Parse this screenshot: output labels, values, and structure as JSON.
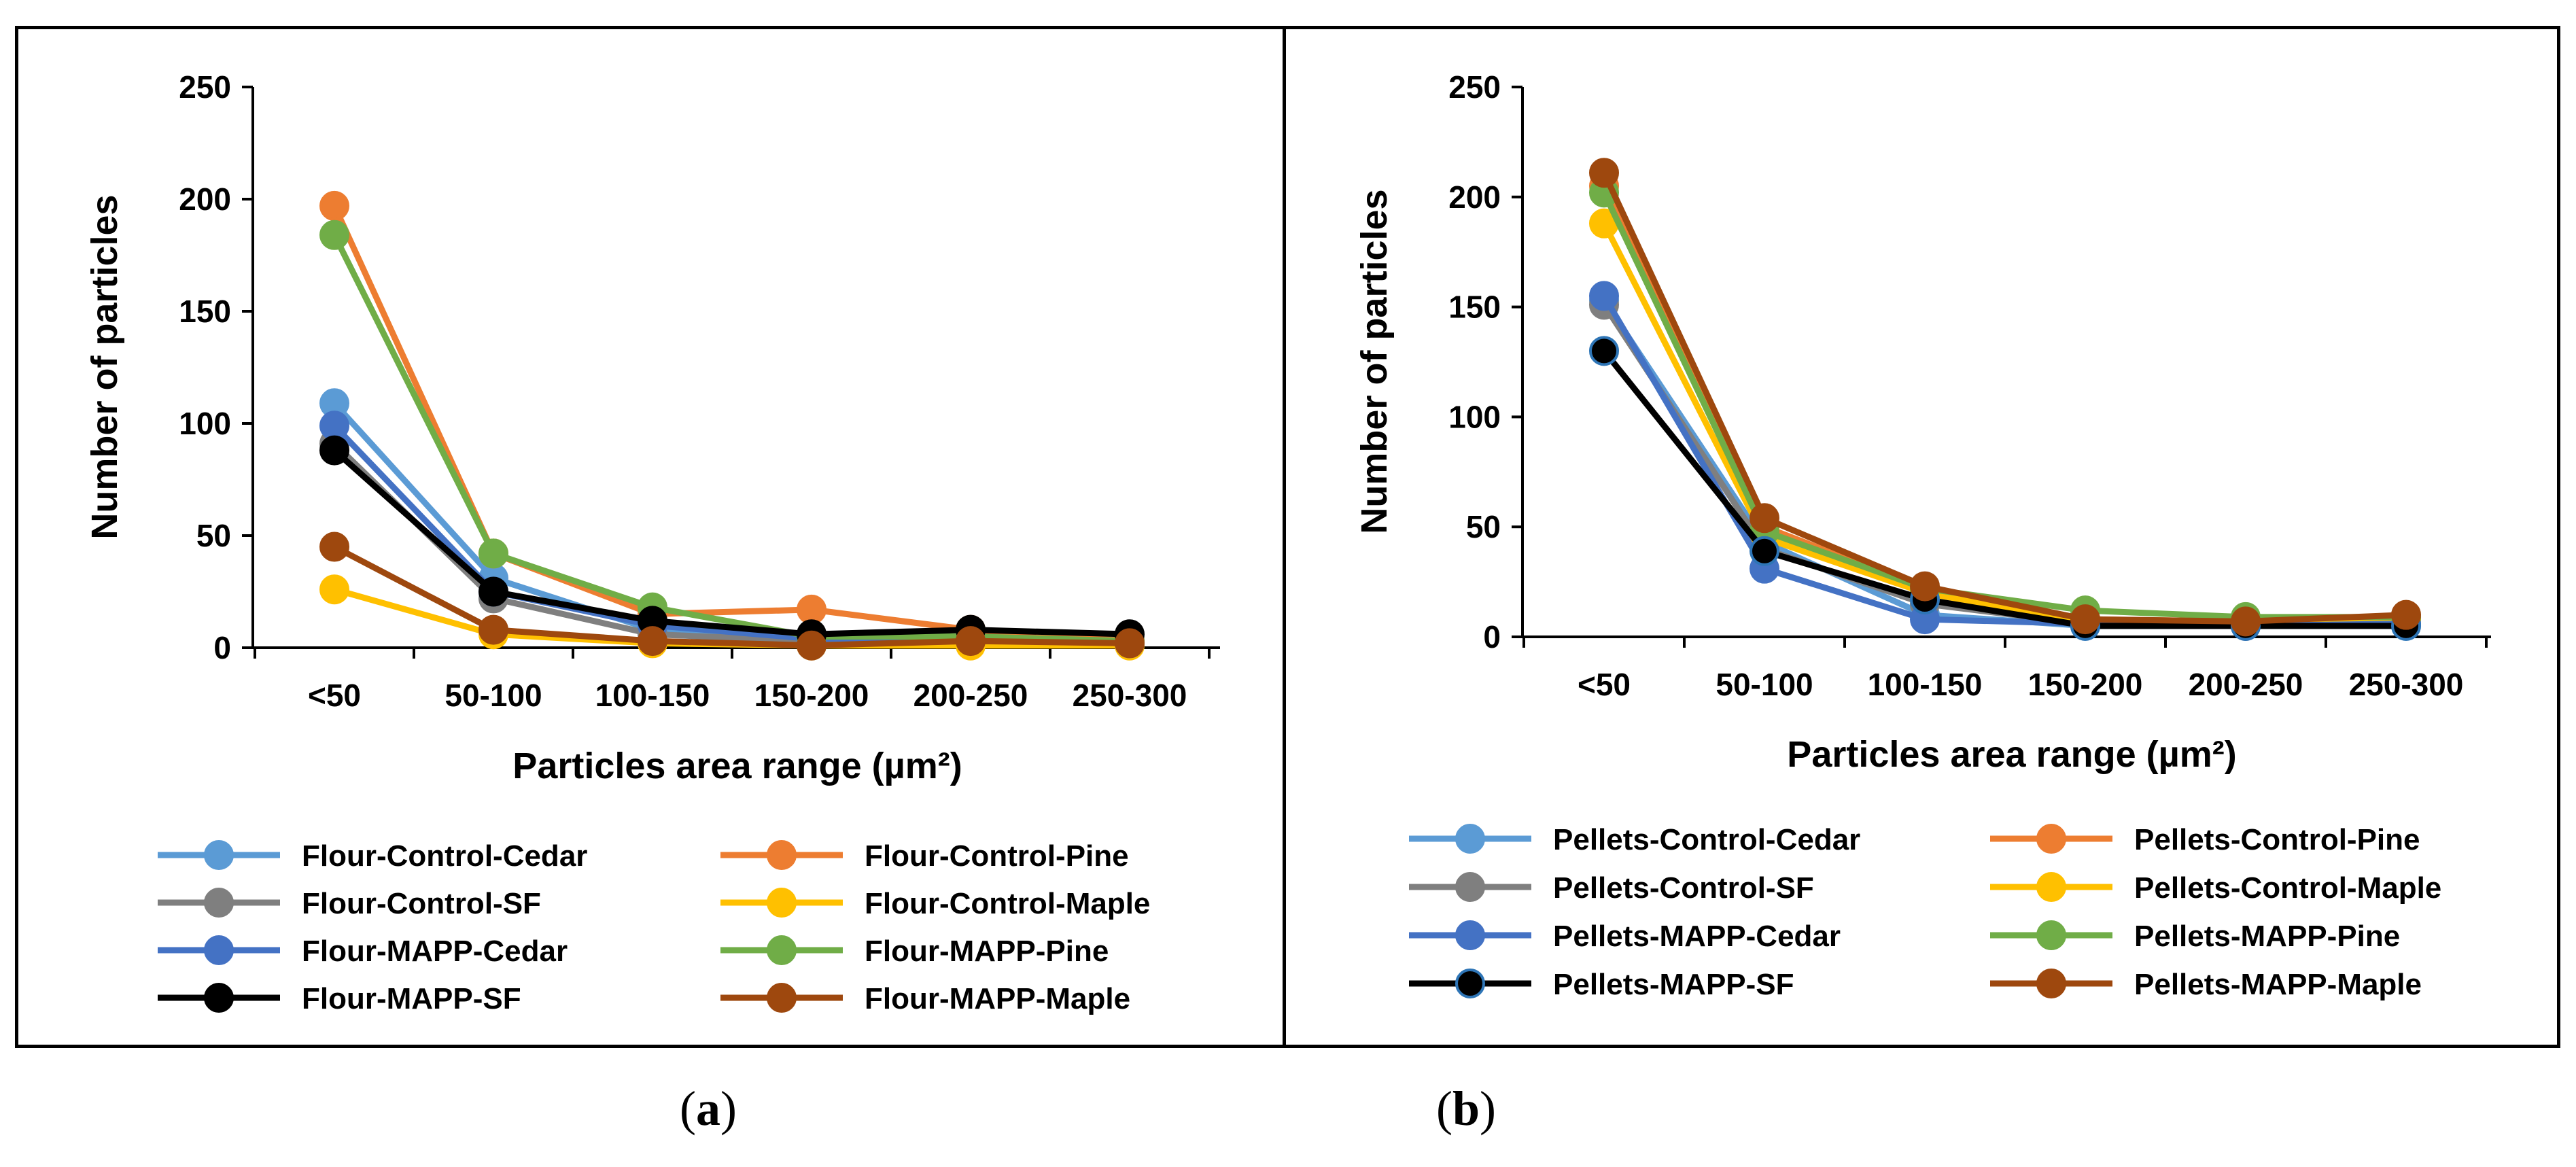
{
  "panel_labels": {
    "a": {
      "open": "(",
      "letter": "a",
      "close": ")"
    },
    "b": {
      "open": "(",
      "letter": "b",
      "close": ")"
    }
  },
  "chart_data": [
    {
      "type": "line",
      "panel": "a",
      "categories": [
        "<50",
        "50-100",
        "100-150",
        "150-200",
        "200-250",
        "250-300"
      ],
      "ylabel": "Number of particles",
      "xlabel": "Particles area range (µm²)",
      "ylim": [
        0,
        250
      ],
      "yticks": [
        0,
        50,
        100,
        150,
        200,
        250
      ],
      "grid": false,
      "legend_position": "bottom",
      "series": [
        {
          "name": "Flour-Control-Cedar",
          "color": "#5B9BD5",
          "marker_edge": "#5B9BD5",
          "values": [
            109,
            31,
            8,
            4,
            4,
            2
          ]
        },
        {
          "name": "Flour-Control-Pine",
          "color": "#ED7D31",
          "marker_edge": "#ED7D31",
          "values": [
            197,
            42,
            15,
            17,
            8,
            3
          ]
        },
        {
          "name": "Flour-Control-SF",
          "color": "#7F7F7F",
          "marker_edge": "#7F7F7F",
          "values": [
            91,
            22,
            6,
            3,
            3,
            2
          ]
        },
        {
          "name": "Flour-Control-Maple",
          "color": "#FFC000",
          "marker_edge": "#FFC000",
          "values": [
            26,
            6,
            2,
            1,
            1,
            1
          ]
        },
        {
          "name": "Flour-MAPP-Cedar",
          "color": "#4472C4",
          "marker_edge": "#4472C4",
          "values": [
            99,
            25,
            10,
            4,
            4,
            2
          ]
        },
        {
          "name": "Flour-MAPP-Pine",
          "color": "#70AD47",
          "marker_edge": "#70AD47",
          "values": [
            184,
            42,
            18,
            5,
            5,
            3
          ]
        },
        {
          "name": "Flour-MAPP-SF",
          "color": "#000000",
          "marker_edge": "#000000",
          "values": [
            88,
            25,
            12,
            6,
            8,
            6
          ]
        },
        {
          "name": "Flour-MAPP-Maple",
          "color": "#9E480E",
          "marker_edge": "#9E480E",
          "values": [
            45,
            8,
            3,
            1,
            3,
            2
          ]
        }
      ]
    },
    {
      "type": "line",
      "panel": "b",
      "categories": [
        "<50",
        "50-100",
        "100-150",
        "150-200",
        "200-250",
        "250-300"
      ],
      "ylabel": "Number of particles",
      "xlabel": "Particles area range (µm²)",
      "ylim": [
        0,
        250
      ],
      "yticks": [
        0,
        50,
        100,
        150,
        200,
        250
      ],
      "grid": false,
      "legend_position": "bottom",
      "series": [
        {
          "name": "Pellets-Control-Cedar",
          "color": "#5B9BD5",
          "marker_edge": "#5B9BD5",
          "values": [
            153,
            43,
            10,
            5,
            5,
            5
          ]
        },
        {
          "name": "Pellets-Control-Pine",
          "color": "#ED7D31",
          "marker_edge": "#ED7D31",
          "values": [
            205,
            50,
            22,
            8,
            7,
            8
          ]
        },
        {
          "name": "Pellets-Control-SF",
          "color": "#7F7F7F",
          "marker_edge": "#7F7F7F",
          "values": [
            151,
            40,
            15,
            6,
            5,
            6
          ]
        },
        {
          "name": "Pellets-Control-Maple",
          "color": "#FFC000",
          "marker_edge": "#FFC000",
          "values": [
            188,
            45,
            20,
            7,
            6,
            8
          ]
        },
        {
          "name": "Pellets-MAPP-Cedar",
          "color": "#4472C4",
          "marker_edge": "#4472C4",
          "values": [
            155,
            31,
            8,
            6,
            5,
            6
          ]
        },
        {
          "name": "Pellets-MAPP-Pine",
          "color": "#70AD47",
          "marker_edge": "#70AD47",
          "values": [
            202,
            48,
            22,
            12,
            9,
            9
          ]
        },
        {
          "name": "Pellets-MAPP-SF",
          "color": "#000000",
          "marker_edge": "#2E75B6",
          "values": [
            130,
            39,
            17,
            5,
            5,
            5
          ]
        },
        {
          "name": "Pellets-MAPP-Maple",
          "color": "#9E480E",
          "marker_edge": "#9E480E",
          "values": [
            211,
            54,
            23,
            8,
            7,
            10
          ]
        }
      ]
    }
  ]
}
